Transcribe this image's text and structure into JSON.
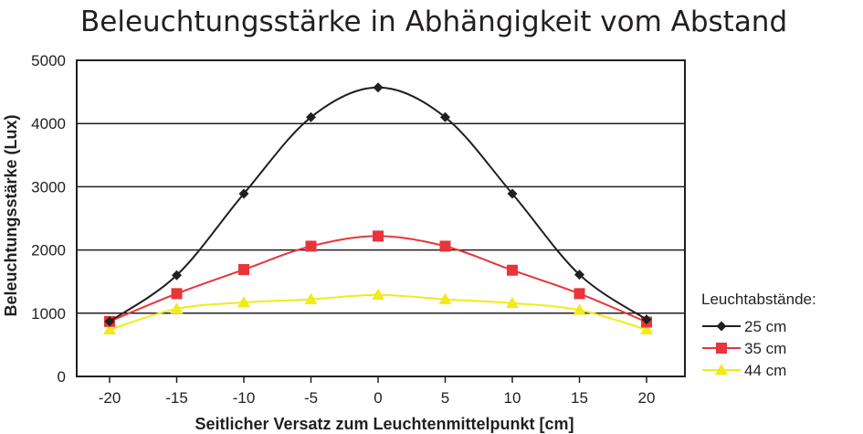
{
  "chart_data": {
    "type": "line",
    "title": "Beleuchtungsstärke in Abhängigkeit vom Abstand",
    "xlabel": "Seitlicher Versatz zum Leuchtenmittelpunkt [cm]",
    "ylabel": "Beleuchtungsstärke (Lux)",
    "x": [
      -20,
      -15,
      -10,
      -5,
      0,
      5,
      10,
      15,
      20
    ],
    "x_tick_labels": [
      "-20",
      "-15",
      "-10",
      "-5",
      "0",
      "5",
      "10",
      "15",
      "20"
    ],
    "ylim": [
      0,
      5000
    ],
    "y_ticks": [
      0,
      1000,
      2000,
      3000,
      4000,
      5000
    ],
    "y_tick_labels": [
      "0",
      "1000",
      "2000",
      "3000",
      "4000",
      "5000"
    ],
    "grid": "horizontal",
    "legend": {
      "title": "Leuchtabstände:",
      "placement": "right"
    },
    "series": [
      {
        "name": "25 cm",
        "color": "#231f20",
        "marker": "diamond",
        "values": [
          870,
          1600,
          2890,
          4100,
          4570,
          4100,
          2890,
          1610,
          900
        ]
      },
      {
        "name": "35 cm",
        "color": "#e8343a",
        "marker": "square",
        "values": [
          870,
          1310,
          1690,
          2060,
          2220,
          2060,
          1680,
          1310,
          860
        ]
      },
      {
        "name": "44 cm",
        "color": "#f2ea19",
        "marker": "triangle",
        "values": [
          740,
          1070,
          1170,
          1220,
          1290,
          1220,
          1160,
          1050,
          740
        ]
      }
    ]
  }
}
